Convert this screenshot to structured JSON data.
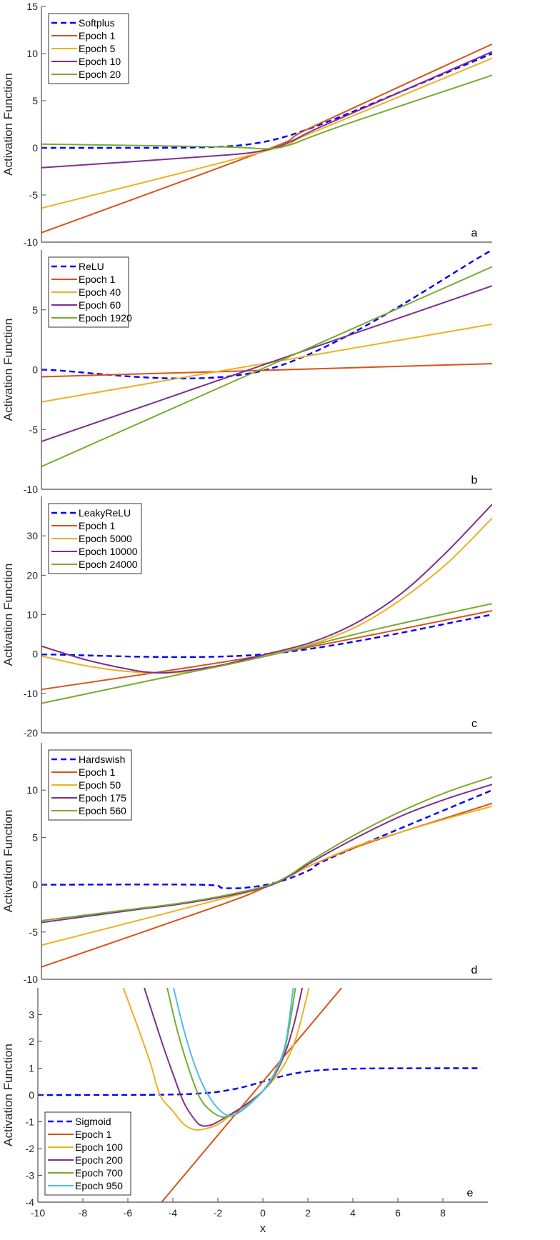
{
  "chart_data": [
    {
      "type": "line",
      "panel_label": "a",
      "ylabel": "Activation Function",
      "xlim": [
        -10,
        10
      ],
      "ylim": [
        -10,
        15
      ],
      "yticks": [
        -10,
        -5,
        0,
        5,
        10,
        15
      ],
      "legend_position": "top-left",
      "series": [
        {
          "name": "Softplus",
          "color": "#0000FF",
          "dashed": true,
          "points": [
            [
              -10,
              0
            ],
            [
              -6,
              0.0025
            ],
            [
              -4,
              0.018
            ],
            [
              -3,
              0.049
            ],
            [
              -2,
              0.127
            ],
            [
              -1,
              0.313
            ],
            [
              0,
              0.693
            ],
            [
              1,
              1.313
            ],
            [
              2,
              2.127
            ],
            [
              3,
              3.049
            ],
            [
              4,
              4.018
            ],
            [
              6,
              6.0025
            ],
            [
              10,
              10
            ]
          ]
        },
        {
          "name": "Epoch 1",
          "color": "#D95319",
          "dashed": false,
          "points": [
            [
              -10,
              -9
            ],
            [
              0,
              -0.2
            ],
            [
              2,
              2.2
            ],
            [
              10,
              11
            ]
          ]
        },
        {
          "name": "Epoch 5",
          "color": "#EDB120",
          "dashed": false,
          "points": [
            [
              -10,
              -6.4
            ],
            [
              0,
              -0.3
            ],
            [
              2,
              1.6
            ],
            [
              10,
              9.5
            ]
          ]
        },
        {
          "name": "Epoch 10",
          "color": "#7E2F8E",
          "dashed": false,
          "points": [
            [
              -10,
              -2.1
            ],
            [
              -2,
              -0.8
            ],
            [
              0,
              -0.2
            ],
            [
              1,
              0.6
            ],
            [
              2,
              1.8
            ],
            [
              4,
              3.9
            ],
            [
              10,
              10.2
            ]
          ]
        },
        {
          "name": "Epoch 20",
          "color": "#77AC30",
          "dashed": false,
          "points": [
            [
              -10,
              0.4
            ],
            [
              -2,
              0.1
            ],
            [
              0,
              -0.1
            ],
            [
              1,
              0.3
            ],
            [
              2,
              1.2
            ],
            [
              4,
              2.9
            ],
            [
              10,
              7.7
            ]
          ]
        }
      ]
    },
    {
      "type": "line",
      "panel_label": "b",
      "ylabel": "Activation Function",
      "xlim": [
        -10,
        10
      ],
      "ylim": [
        -10,
        10
      ],
      "yticks": [
        -10,
        -5,
        0,
        5
      ],
      "legend_position": "top-left",
      "series": [
        {
          "name": "ReLU",
          "color": "#0000FF",
          "dashed": true,
          "points": [
            [
              -10,
              0
            ],
            [
              0,
              0
            ],
            [
              10,
              10
            ]
          ]
        },
        {
          "name": "Epoch 1",
          "color": "#D95319",
          "dashed": false,
          "points": [
            [
              -10,
              -0.6
            ],
            [
              10,
              0.5
            ]
          ]
        },
        {
          "name": "Epoch 40",
          "color": "#EDB120",
          "dashed": false,
          "points": [
            [
              -10,
              -2.7
            ],
            [
              10,
              3.8
            ]
          ]
        },
        {
          "name": "Epoch 60",
          "color": "#7E2F8E",
          "dashed": false,
          "points": [
            [
              -10,
              -6
            ],
            [
              10,
              7
            ]
          ]
        },
        {
          "name": "Epoch 1920",
          "color": "#77AC30",
          "dashed": false,
          "points": [
            [
              -10,
              -8.1
            ],
            [
              10,
              8.6
            ]
          ]
        }
      ]
    },
    {
      "type": "line",
      "panel_label": "c",
      "ylabel": "Activation Function",
      "xlim": [
        -10,
        10
      ],
      "ylim": [
        -20,
        40
      ],
      "yticks": [
        -20,
        -10,
        0,
        10,
        20,
        30
      ],
      "legend_position": "top-left",
      "series": [
        {
          "name": "LeakyReLU",
          "color": "#0000FF",
          "dashed": true,
          "points": [
            [
              -10,
              -0.1
            ],
            [
              0,
              0
            ],
            [
              10,
              10
            ]
          ]
        },
        {
          "name": "Epoch 1",
          "color": "#D95319",
          "dashed": false,
          "points": [
            [
              -10,
              -9
            ],
            [
              0,
              -0.2
            ],
            [
              10,
              11
            ]
          ]
        },
        {
          "name": "Epoch 5000",
          "color": "#EDB120",
          "dashed": false,
          "points": [
            [
              -10,
              -0.5
            ],
            [
              -8,
              -3
            ],
            [
              -6,
              -4.5
            ],
            [
              -4,
              -4.7
            ],
            [
              -2,
              -3
            ],
            [
              0,
              -0.3
            ],
            [
              2,
              2.5
            ],
            [
              4,
              7
            ],
            [
              6,
              14
            ],
            [
              8,
              23
            ],
            [
              10,
              34.5
            ]
          ]
        },
        {
          "name": "Epoch 10000",
          "color": "#7E2F8E",
          "dashed": false,
          "points": [
            [
              -10,
              2
            ],
            [
              -8,
              -1.5
            ],
            [
              -6,
              -4
            ],
            [
              -5,
              -4.7
            ],
            [
              -4,
              -4.5
            ],
            [
              -2,
              -2.8
            ],
            [
              0,
              0
            ],
            [
              2,
              3
            ],
            [
              4,
              8
            ],
            [
              6,
              15.5
            ],
            [
              8,
              26
            ],
            [
              10,
              38
            ]
          ]
        },
        {
          "name": "Epoch 24000",
          "color": "#77AC30",
          "dashed": false,
          "points": [
            [
              -10,
              -12.5
            ],
            [
              -5,
              -6.5
            ],
            [
              0,
              -0.5
            ],
            [
              5,
              6.5
            ],
            [
              10,
              12.8
            ]
          ]
        }
      ]
    },
    {
      "type": "line",
      "panel_label": "d",
      "ylabel": "Activation Function",
      "xlim": [
        -10,
        10
      ],
      "ylim": [
        -10,
        15
      ],
      "yticks": [
        -10,
        -5,
        0,
        5,
        10
      ],
      "legend_position": "top-left",
      "series": [
        {
          "name": "Hardswish",
          "color": "#0000FF",
          "dashed": true,
          "points": [
            [
              -10,
              0
            ],
            [
              -3,
              0
            ],
            [
              -2,
              -0.333
            ],
            [
              -1.5,
              -0.375
            ],
            [
              -1,
              -0.333
            ],
            [
              0,
              0
            ],
            [
              1,
              0.667
            ],
            [
              2,
              1.667
            ],
            [
              3,
              3
            ],
            [
              10,
              10
            ]
          ]
        },
        {
          "name": "Epoch 1",
          "color": "#D95319",
          "dashed": false,
          "points": [
            [
              -10,
              -8.7
            ],
            [
              -2,
              -2.1
            ],
            [
              0,
              -0.2
            ],
            [
              1,
              0.9
            ],
            [
              2,
              2.1
            ],
            [
              4,
              4
            ],
            [
              6,
              5.6
            ],
            [
              8,
              7.1
            ],
            [
              10,
              8.6
            ]
          ]
        },
        {
          "name": "Epoch 50",
          "color": "#EDB120",
          "dashed": false,
          "points": [
            [
              -10,
              -6.4
            ],
            [
              -2,
              -1.5
            ],
            [
              0,
              -0.2
            ],
            [
              1,
              0.9
            ],
            [
              2,
              2.1
            ],
            [
              4,
              4.1
            ],
            [
              6,
              5.6
            ],
            [
              8,
              7
            ],
            [
              10,
              8.3
            ]
          ]
        },
        {
          "name": "Epoch 175",
          "color": "#7E2F8E",
          "dashed": false,
          "points": [
            [
              -10,
              -4
            ],
            [
              -6,
              -2.7
            ],
            [
              -4,
              -2.1
            ],
            [
              -2,
              -1.3
            ],
            [
              0,
              -0.2
            ],
            [
              1,
              0.9
            ],
            [
              2,
              2.4
            ],
            [
              4,
              5
            ],
            [
              6,
              7.3
            ],
            [
              8,
              9.1
            ],
            [
              10,
              10.6
            ]
          ]
        },
        {
          "name": "Epoch 560",
          "color": "#77AC30",
          "dashed": false,
          "points": [
            [
              -10,
              -3.8
            ],
            [
              -6,
              -2.6
            ],
            [
              -4,
              -2
            ],
            [
              -2,
              -1.2
            ],
            [
              0,
              -0.1
            ],
            [
              1,
              1
            ],
            [
              2,
              2.6
            ],
            [
              4,
              5.4
            ],
            [
              6,
              7.8
            ],
            [
              8,
              9.8
            ],
            [
              10,
              11.4
            ]
          ]
        }
      ]
    },
    {
      "type": "line",
      "panel_label": "e",
      "ylabel": "Activation Function",
      "xlabel": "x",
      "xlim": [
        -10,
        10
      ],
      "ylim": [
        -4,
        4
      ],
      "xticks": [
        -10,
        -8,
        -6,
        -4,
        -2,
        0,
        2,
        4,
        6,
        8
      ],
      "yticks": [
        -4,
        -3,
        -2,
        -1,
        0,
        1,
        2,
        3
      ],
      "legend_position": "bottom-left",
      "series": [
        {
          "name": "Sigmoid",
          "color": "#0000FF",
          "dashed": true,
          "points": [
            [
              -10,
              0
            ],
            [
              -6,
              0.0025
            ],
            [
              -4,
              0.018
            ],
            [
              -3,
              0.047
            ],
            [
              -2,
              0.119
            ],
            [
              -1,
              0.269
            ],
            [
              0,
              0.5
            ],
            [
              1,
              0.731
            ],
            [
              2,
              0.881
            ],
            [
              3,
              0.953
            ],
            [
              4,
              0.982
            ],
            [
              6,
              0.9975
            ],
            [
              9.7,
              1
            ]
          ]
        },
        {
          "name": "Epoch 1",
          "color": "#D95319",
          "dashed": false,
          "points": [
            [
              -4.5,
              -4
            ],
            [
              3.5,
              4
            ]
          ]
        },
        {
          "name": "Epoch 100",
          "color": "#EDB120",
          "dashed": false,
          "points": [
            [
              -6.2,
              4
            ],
            [
              -5.5,
              2.4
            ],
            [
              -5,
              1.2
            ],
            [
              -4.57,
              0
            ],
            [
              -4,
              -0.6
            ],
            [
              -3.5,
              -1.1
            ],
            [
              -3,
              -1.3
            ],
            [
              -2.5,
              -1.25
            ],
            [
              -2,
              -1.1
            ],
            [
              -1.5,
              -0.8
            ],
            [
              -1,
              -0.5
            ],
            [
              -0.5,
              -0.2
            ],
            [
              0,
              0.15
            ],
            [
              0.5,
              0.6
            ],
            [
              1,
              1.2
            ],
            [
              1.5,
              2.2
            ],
            [
              2.05,
              4
            ]
          ]
        },
        {
          "name": "Epoch 200",
          "color": "#7E2F8E",
          "dashed": false,
          "points": [
            [
              -5.27,
              4
            ],
            [
              -4.5,
              2
            ],
            [
              -4,
              0.8
            ],
            [
              -3.5,
              -0.3
            ],
            [
              -3,
              -0.95
            ],
            [
              -2.7,
              -1.15
            ],
            [
              -2.3,
              -1.12
            ],
            [
              -2,
              -1
            ],
            [
              -1.5,
              -0.75
            ],
            [
              -1,
              -0.5
            ],
            [
              -0.5,
              -0.2
            ],
            [
              0,
              0.15
            ],
            [
              0.5,
              0.7
            ],
            [
              1,
              1.6
            ],
            [
              1.4,
              2.7
            ],
            [
              1.75,
              4
            ]
          ]
        },
        {
          "name": "Epoch 700",
          "color": "#77AC30",
          "dashed": false,
          "points": [
            [
              -4.25,
              4
            ],
            [
              -3.8,
              2.4
            ],
            [
              -3.3,
              1
            ],
            [
              -2.8,
              -0.1
            ],
            [
              -2.3,
              -0.6
            ],
            [
              -1.8,
              -0.82
            ],
            [
              -1.3,
              -0.75
            ],
            [
              -1,
              -0.6
            ],
            [
              -0.5,
              -0.25
            ],
            [
              0,
              0.15
            ],
            [
              0.5,
              0.75
            ],
            [
              1,
              1.8
            ],
            [
              1.45,
              4
            ]
          ]
        },
        {
          "name": "Epoch 950",
          "color": "#4DBEEE",
          "dashed": false,
          "points": [
            [
              -3.97,
              4
            ],
            [
              -3.5,
              2.4
            ],
            [
              -3,
              1.05
            ],
            [
              -2.5,
              0.1
            ],
            [
              -2,
              -0.5
            ],
            [
              -1.6,
              -0.75
            ],
            [
              -1.2,
              -0.72
            ],
            [
              -0.8,
              -0.5
            ],
            [
              -0.4,
              -0.2
            ],
            [
              0,
              0.15
            ],
            [
              0.5,
              0.8
            ],
            [
              1,
              1.9
            ],
            [
              1.35,
              4
            ]
          ]
        }
      ]
    }
  ]
}
